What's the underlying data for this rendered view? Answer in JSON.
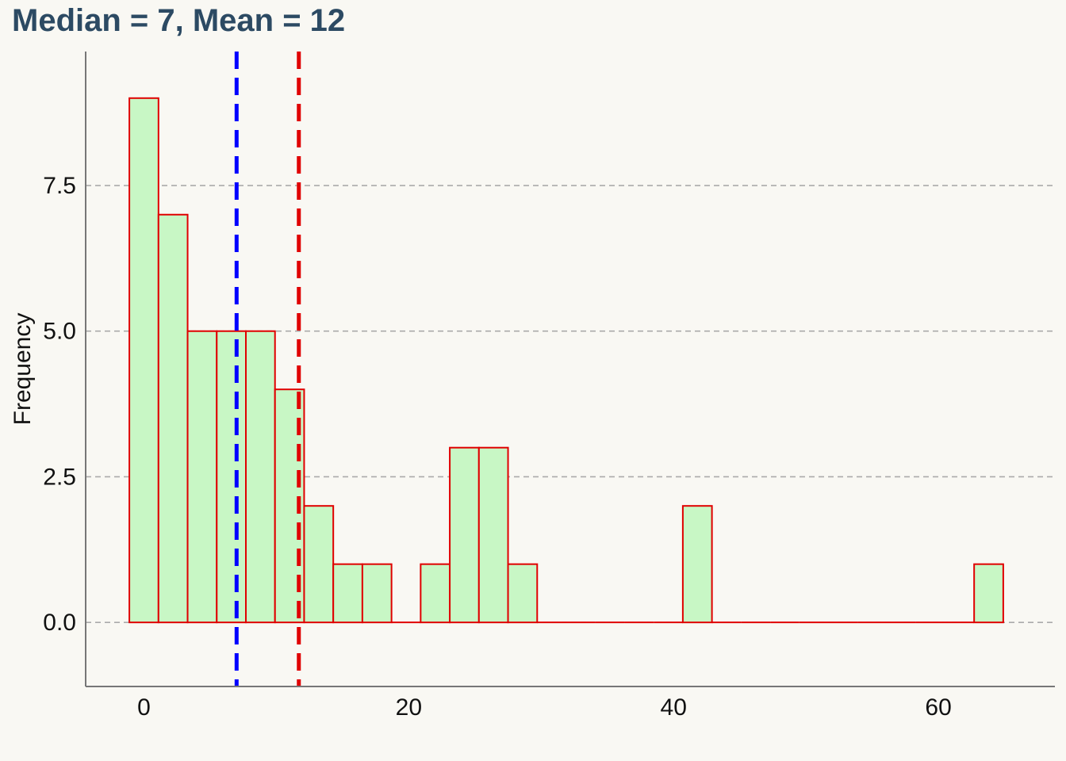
{
  "chart_data": {
    "type": "bar",
    "title": "Median = 7, Mean = 12",
    "xlabel": "",
    "ylabel": "Frequency",
    "bin_width": 2.2,
    "bins": [
      {
        "x0": -1.1,
        "x1": 1.1,
        "count": 9
      },
      {
        "x0": 1.1,
        "x1": 3.3,
        "count": 7
      },
      {
        "x0": 3.3,
        "x1": 5.5,
        "count": 5
      },
      {
        "x0": 5.5,
        "x1": 7.7,
        "count": 5
      },
      {
        "x0": 7.7,
        "x1": 9.9,
        "count": 5
      },
      {
        "x0": 9.9,
        "x1": 12.1,
        "count": 4
      },
      {
        "x0": 12.1,
        "x1": 14.3,
        "count": 2
      },
      {
        "x0": 14.3,
        "x1": 16.5,
        "count": 1
      },
      {
        "x0": 16.5,
        "x1": 18.7,
        "count": 1
      },
      {
        "x0": 18.7,
        "x1": 20.9,
        "count": 0
      },
      {
        "x0": 20.9,
        "x1": 23.1,
        "count": 1
      },
      {
        "x0": 23.1,
        "x1": 25.3,
        "count": 3
      },
      {
        "x0": 25.3,
        "x1": 27.5,
        "count": 3
      },
      {
        "x0": 27.5,
        "x1": 29.7,
        "count": 1
      },
      {
        "x0": 29.7,
        "x1": 31.9,
        "count": 0
      },
      {
        "x0": 31.9,
        "x1": 34.1,
        "count": 0
      },
      {
        "x0": 34.1,
        "x1": 36.3,
        "count": 0
      },
      {
        "x0": 36.3,
        "x1": 38.5,
        "count": 0
      },
      {
        "x0": 38.5,
        "x1": 40.7,
        "count": 0
      },
      {
        "x0": 40.7,
        "x1": 42.9,
        "count": 2
      },
      {
        "x0": 42.9,
        "x1": 45.1,
        "count": 0
      },
      {
        "x0": 45.1,
        "x1": 47.3,
        "count": 0
      },
      {
        "x0": 47.3,
        "x1": 49.5,
        "count": 0
      },
      {
        "x0": 49.5,
        "x1": 51.7,
        "count": 0
      },
      {
        "x0": 51.7,
        "x1": 53.9,
        "count": 0
      },
      {
        "x0": 53.9,
        "x1": 56.1,
        "count": 0
      },
      {
        "x0": 56.1,
        "x1": 58.3,
        "count": 0
      },
      {
        "x0": 58.3,
        "x1": 60.5,
        "count": 0
      },
      {
        "x0": 60.5,
        "x1": 62.7,
        "count": 0
      },
      {
        "x0": 62.7,
        "x1": 64.9,
        "count": 1
      }
    ],
    "xlim": [
      -4.4,
      68.8
    ],
    "ylim": [
      -1.1,
      9.8
    ],
    "xticks": [
      0,
      20,
      40,
      60
    ],
    "xtick_labels": [
      "0",
      "20",
      "40",
      "60"
    ],
    "yticks": [
      0,
      2.5,
      5,
      7.5
    ],
    "ytick_labels": [
      "0.0",
      "2.5",
      "5.0",
      "7.5"
    ],
    "vlines": [
      {
        "value": 7,
        "color": "#0000ff",
        "style": "dashed"
      },
      {
        "value": 11.7,
        "color": "#e00000",
        "style": "dashed"
      }
    ],
    "bar_fill": "#c8f7c5",
    "bar_edge": "#e00000",
    "grid": "horizontal dashed",
    "grid_color": "#aaaaaa",
    "title_color": "#2c4a63",
    "background": "#f9f8f3"
  }
}
